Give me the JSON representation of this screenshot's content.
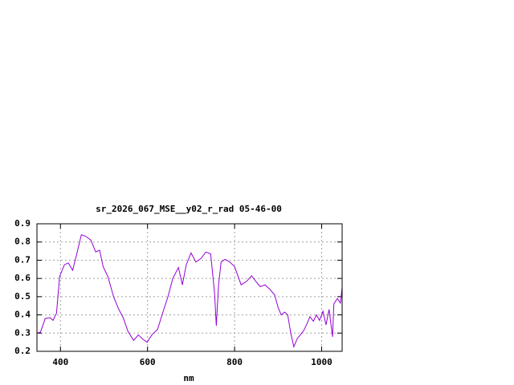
{
  "chart_data": {
    "type": "line",
    "title": "sr_2026_067_MSE__y02_r_rad 05-46-00",
    "xlabel": "nm",
    "x": [
      346,
      354,
      365,
      376,
      383,
      391,
      398,
      409,
      418,
      428,
      437,
      448,
      459,
      470,
      481,
      490,
      498,
      509,
      522,
      533,
      544,
      555,
      568,
      579,
      590,
      599,
      610,
      623,
      636,
      647,
      658,
      671,
      680,
      689,
      700,
      711,
      723,
      734,
      745,
      754,
      758,
      763,
      769,
      778,
      789,
      800,
      815,
      828,
      839,
      850,
      859,
      870,
      881,
      892,
      900,
      907,
      915,
      922,
      929,
      936,
      944,
      951,
      959,
      966,
      973,
      981,
      988,
      995,
      1003,
      1010,
      1017,
      1025,
      1028,
      1036,
      1043,
      1047
    ],
    "series": [
      {
        "color": "#9400d3",
        "values": [
          0.3,
          0.305,
          0.38,
          0.385,
          0.37,
          0.41,
          0.61,
          0.675,
          0.685,
          0.645,
          0.73,
          0.84,
          0.83,
          0.81,
          0.745,
          0.755,
          0.665,
          0.61,
          0.5,
          0.435,
          0.385,
          0.31,
          0.26,
          0.29,
          0.265,
          0.25,
          0.29,
          0.32,
          0.42,
          0.5,
          0.6,
          0.66,
          0.565,
          0.675,
          0.74,
          0.69,
          0.71,
          0.745,
          0.735,
          0.52,
          0.34,
          0.56,
          0.69,
          0.705,
          0.69,
          0.665,
          0.565,
          0.585,
          0.615,
          0.58,
          0.555,
          0.565,
          0.54,
          0.51,
          0.44,
          0.4,
          0.415,
          0.4,
          0.3,
          0.225,
          0.27,
          0.29,
          0.315,
          0.35,
          0.39,
          0.365,
          0.4,
          0.37,
          0.42,
          0.345,
          0.43,
          0.28,
          0.46,
          0.49,
          0.465,
          0.55
        ]
      }
    ],
    "xlim": [
      346,
      1047
    ],
    "xticks": [
      400,
      600,
      800,
      1000
    ],
    "ylim": [
      0.2,
      0.9
    ],
    "yticks": [
      0.2,
      0.3,
      0.4,
      0.5,
      0.6,
      0.7,
      0.8,
      0.9
    ],
    "grid": true
  }
}
